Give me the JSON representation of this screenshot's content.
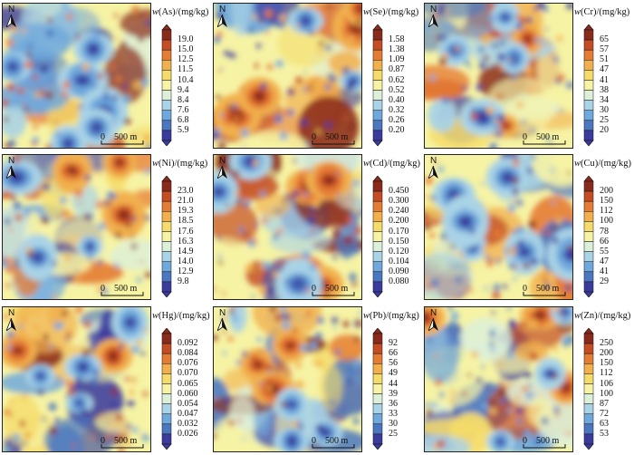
{
  "north_label": "N",
  "scale_label": "0    500 m",
  "ramp_colors": [
    "#3b3b9e",
    "#4a77c0",
    "#6fa8dc",
    "#a9d3e6",
    "#dcefd9",
    "#f6f3a4",
    "#f5dc6a",
    "#f1b04d",
    "#e57c34",
    "#c54d24",
    "#8a2a1a"
  ],
  "panels": [
    {
      "id": "as",
      "element": "As",
      "unit_suffix": "/(mg/kg)",
      "ticks": [
        "19.0",
        "15.0",
        "12.5",
        "11.5",
        "10.4",
        "9.4",
        "8.4",
        "7.6",
        "6.8",
        "5.9"
      ]
    },
    {
      "id": "se",
      "element": "Se",
      "unit_suffix": "/(mg/kg)",
      "ticks": [
        "1.58",
        "1.38",
        "1.09",
        "0.87",
        "0.62",
        "0.52",
        "0.40",
        "0.32",
        "0.26",
        "0.20"
      ]
    },
    {
      "id": "cr",
      "element": "Cr",
      "unit_suffix": "/(mg/kg)",
      "ticks": [
        "65",
        "57",
        "51",
        "47",
        "41",
        "38",
        "34",
        "30",
        "25",
        "20"
      ]
    },
    {
      "id": "ni",
      "element": "Ni",
      "unit_suffix": "/(mg/kg)",
      "ticks": [
        "23.0",
        "21.0",
        "19.3",
        "18.5",
        "17.6",
        "16.3",
        "14.9",
        "14.0",
        "12.9",
        "9.8"
      ]
    },
    {
      "id": "cd",
      "element": "Cd",
      "unit_suffix": "/(mg/kg)",
      "ticks": [
        "0.450",
        "0.300",
        "0.240",
        "0.200",
        "0.170",
        "0.150",
        "0.120",
        "0.104",
        "0.090",
        "0.080"
      ]
    },
    {
      "id": "cu",
      "element": "Cu",
      "unit_suffix": "/(mg/kg)",
      "ticks": [
        "200",
        "150",
        "112",
        "100",
        "78",
        "66",
        "55",
        "47",
        "41",
        "29"
      ]
    },
    {
      "id": "hg",
      "element": "Hg",
      "unit_suffix": "/(mg/kg)",
      "ticks": [
        "0.092",
        "0.084",
        "0.076",
        "0.070",
        "0.065",
        "0.060",
        "0.054",
        "0.047",
        "0.032",
        "0.026"
      ]
    },
    {
      "id": "pb",
      "element": "Pb",
      "unit_suffix": "/(mg/kg)",
      "ticks": [
        "92",
        "66",
        "56",
        "49",
        "44",
        "39",
        "36",
        "33",
        "30",
        "25"
      ]
    },
    {
      "id": "zn",
      "element": "Zn",
      "unit_suffix": "/(mg/kg)",
      "ticks": [
        "250",
        "200",
        "150",
        "112",
        "106",
        "100",
        "87",
        "72",
        "63",
        "53"
      ]
    }
  ]
}
